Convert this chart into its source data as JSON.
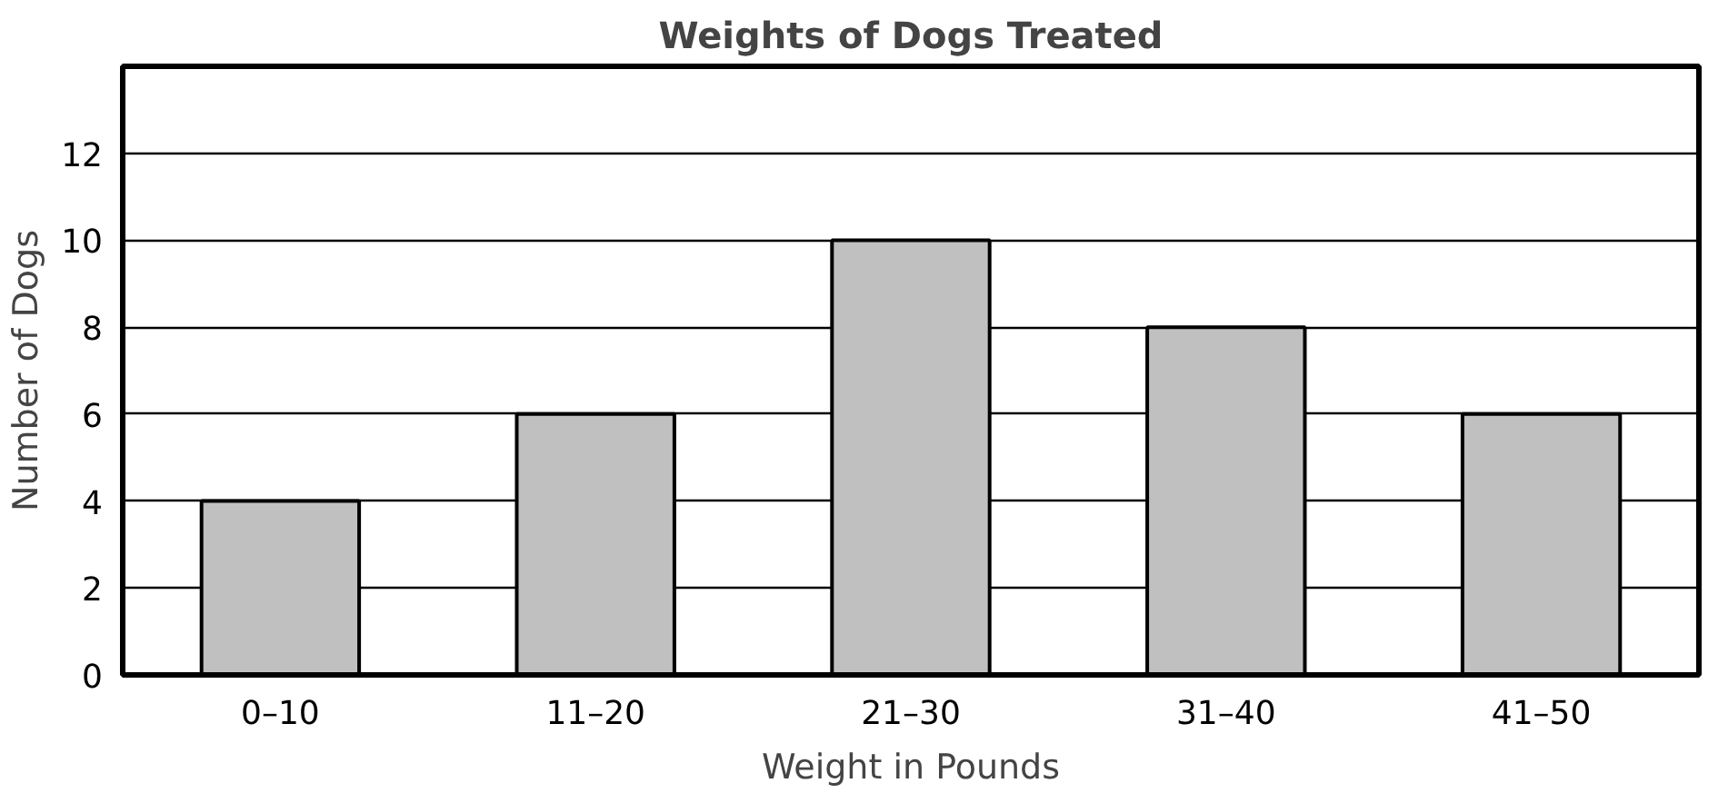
{
  "chart_data": {
    "type": "bar",
    "title": "Weights of Dogs Treated",
    "xlabel": "Weight in Pounds",
    "ylabel": "Number of Dogs",
    "categories": [
      "0–10",
      "11–20",
      "21–30",
      "31–40",
      "41–50"
    ],
    "values": [
      4,
      6,
      10,
      8,
      6
    ],
    "color": "#c0c0c0",
    "ylim": [
      0,
      14
    ],
    "yticks": [
      0,
      2,
      4,
      6,
      8,
      10,
      12
    ],
    "grid": "y"
  }
}
